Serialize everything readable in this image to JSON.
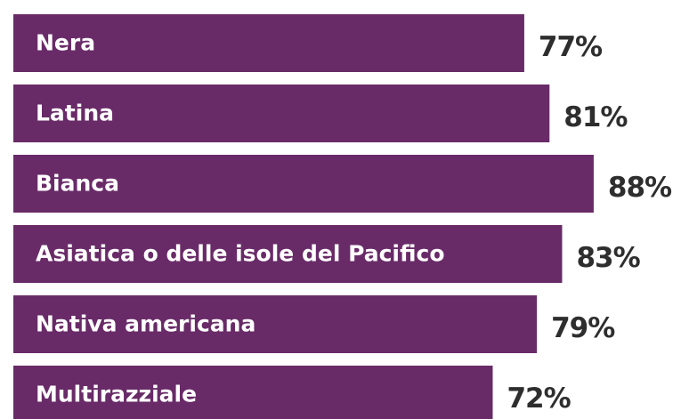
{
  "chart_data": {
    "type": "bar",
    "orientation": "horizontal",
    "categories": [
      "Nera",
      "Latina",
      "Bianca",
      "Asiatica o delle isole del Pacifico",
      "Nativa americana",
      "Multirazziale"
    ],
    "values": [
      77,
      81,
      88,
      83,
      79,
      72
    ],
    "value_labels": [
      "77%",
      "81%",
      "88%",
      "83%",
      "79%",
      "72%"
    ],
    "color": "#692b68"
  }
}
